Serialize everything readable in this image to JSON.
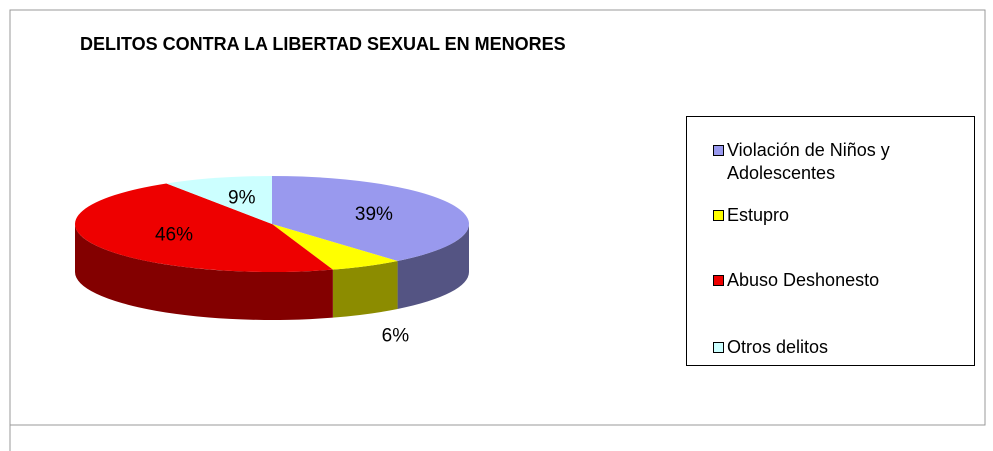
{
  "chart_data": {
    "type": "pie",
    "title": "DELITOS CONTRA LA LIBERTAD SEXUAL EN MENORES",
    "categories": [
      "Violación de Niños y Adolescentes",
      "Estupro",
      "Abuso Deshonesto",
      "Otros delitos"
    ],
    "values": [
      39,
      6,
      46,
      9
    ],
    "value_labels": [
      "39%",
      "6%",
      "46%",
      "9%"
    ],
    "colors": [
      "#9999ee",
      "#ffff00",
      "#ee0000",
      "#ccffff"
    ],
    "legend": "right"
  }
}
